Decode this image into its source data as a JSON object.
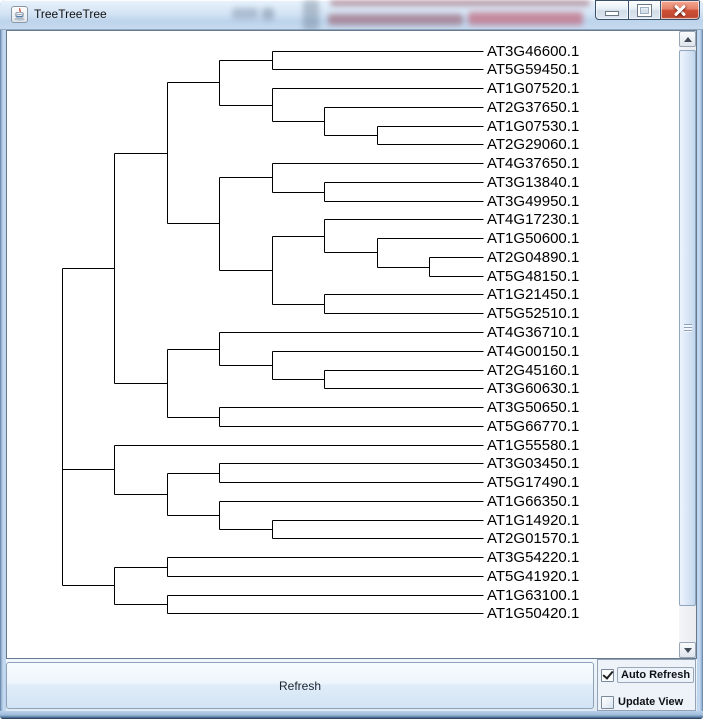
{
  "window": {
    "title": "TreeTreeTree",
    "icon": "java-coffee-cup-icon",
    "buttons": {
      "minimize": "minimize",
      "maximize": "maximize",
      "close": "close"
    }
  },
  "controls": {
    "refresh_label": "Refresh",
    "auto_refresh_label": "Auto Refresh",
    "auto_refresh_checked": true,
    "update_view_label": "Update View",
    "update_view_checked": false
  },
  "chart_data": {
    "type": "dendrogram",
    "orientation": "horizontal, labels on right",
    "line_color": "#000000",
    "leaf_count": 31,
    "leaves": [
      "AT3G46600.1",
      "AT5G59450.1",
      "AT1G07520.1",
      "AT2G37650.1",
      "AT1G07530.1",
      "AT2G29060.1",
      "AT4G37650.1",
      "AT3G13840.1",
      "AT3G49950.1",
      "AT4G17230.1",
      "AT1G50600.1",
      "AT2G04890.1",
      "AT5G48150.1",
      "AT1G21450.1",
      "AT5G52510.1",
      "AT4G36710.1",
      "AT4G00150.1",
      "AT2G45160.1",
      "AT3G60630.1",
      "AT3G50650.1",
      "AT5G66770.1",
      "AT1G55580.1",
      "AT3G03450.1",
      "AT5G17490.1",
      "AT1G66350.1",
      "AT1G14920.1",
      "AT2G01570.1",
      "AT3G54220.1",
      "AT5G41920.1",
      "AT1G63100.1",
      "AT1G50420.1"
    ],
    "tree": [
      [
        [
          [
            [
              "AT3G46600.1",
              "AT5G59450.1"
            ],
            [
              "AT1G07520.1",
              [
                "AT2G37650.1",
                [
                  "AT1G07530.1",
                  "AT2G29060.1"
                ]
              ]
            ]
          ],
          [
            [
              "AT4G37650.1",
              [
                "AT3G13840.1",
                "AT3G49950.1"
              ]
            ],
            [
              [
                "AT4G17230.1",
                [
                  "AT1G50600.1",
                  [
                    "AT2G04890.1",
                    "AT5G48150.1"
                  ]
                ]
              ],
              [
                "AT1G21450.1",
                "AT5G52510.1"
              ]
            ]
          ]
        ],
        [
          [
            "AT4G36710.1",
            [
              "AT4G00150.1",
              [
                "AT2G45160.1",
                "AT3G60630.1"
              ]
            ]
          ],
          [
            "AT3G50650.1",
            "AT5G66770.1"
          ]
        ]
      ],
      [
        "AT1G55580.1",
        [
          [
            "AT3G03450.1",
            "AT5G17490.1"
          ],
          [
            "AT1G66350.1",
            [
              "AT1G14920.1",
              "AT2G01570.1"
            ]
          ]
        ]
      ],
      [
        [
          "AT3G54220.1",
          "AT5G41920.1"
        ],
        [
          "AT1G63100.1",
          "AT1G50420.1"
        ]
      ]
    ]
  }
}
